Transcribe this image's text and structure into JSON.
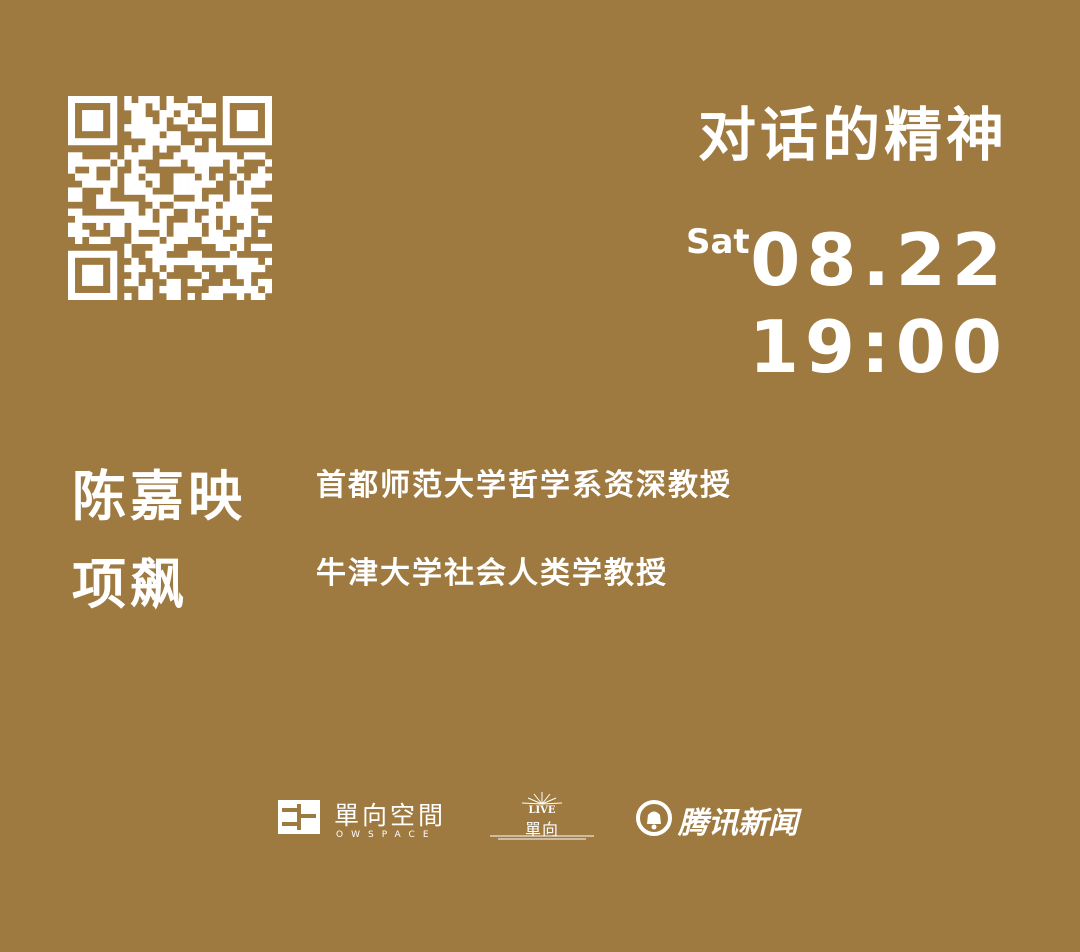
{
  "event": {
    "title": "对话的精神",
    "day_of_week": "Sat",
    "date": "08.22",
    "time": "19:00"
  },
  "speakers": [
    {
      "name": "陈嘉映",
      "role": "首都师范大学哲学系资深教授"
    },
    {
      "name": "项飙",
      "role": "牛津大学社会人类学教授"
    }
  ],
  "logos": {
    "owspace_cn": "單向空間",
    "owspace_en": "OWSPACE",
    "live_top": "LIVE",
    "live_cn": "單向",
    "tencent": "腾讯新闻"
  },
  "colors": {
    "background": "#9f7a40",
    "foreground": "#ffffff"
  }
}
